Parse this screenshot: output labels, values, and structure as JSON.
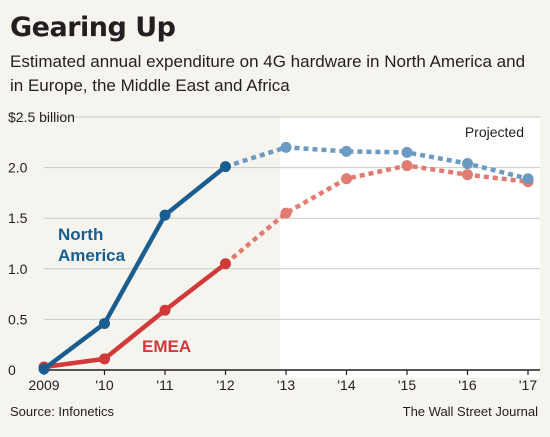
{
  "title": "Gearing Up",
  "subtitle": "Estimated annual expenditure on 4G hardware in North America and in Europe, the Middle East and Africa",
  "source": "Source: Infonetics",
  "credit": "The Wall Street Journal",
  "colors": {
    "background": "#f5f4ef",
    "projected_background": "#ffffff",
    "north_america": "#1a5e8f",
    "north_america_projected": "#6b9bc3",
    "emea": "#d23a3a",
    "emea_projected": "#e07c72",
    "grid": "#c9c9c9"
  },
  "chart_data": {
    "type": "line",
    "title": "Gearing Up",
    "subtitle": "Estimated annual expenditure on 4G hardware in North America and in Europe, the Middle East and Africa",
    "y_unit_label": "$2.5 billion",
    "x_ticks": [
      "2009",
      "'10",
      "'11",
      "'12",
      "'13",
      "'14",
      "'15",
      "'16",
      "'17"
    ],
    "y_ticks": [
      "0",
      "0.5",
      "1.0",
      "1.5",
      "2.0",
      "$2.5 billion"
    ],
    "x": [
      2009,
      2010,
      2011,
      2012,
      2013,
      2014,
      2015,
      2016,
      2017
    ],
    "ylim": [
      0,
      2.5
    ],
    "grid": true,
    "projected_from": 2012,
    "projected_label": "Projected",
    "series": [
      {
        "name": "North America",
        "label_lines": [
          "North",
          "America"
        ],
        "values": [
          0.01,
          0.46,
          1.53,
          2.01,
          2.2,
          2.16,
          2.15,
          2.04,
          1.89
        ]
      },
      {
        "name": "EMEA",
        "label_lines": [
          "EMEA"
        ],
        "values": [
          0.03,
          0.11,
          0.59,
          1.05,
          1.55,
          1.89,
          2.02,
          1.93,
          1.86
        ]
      }
    ]
  }
}
